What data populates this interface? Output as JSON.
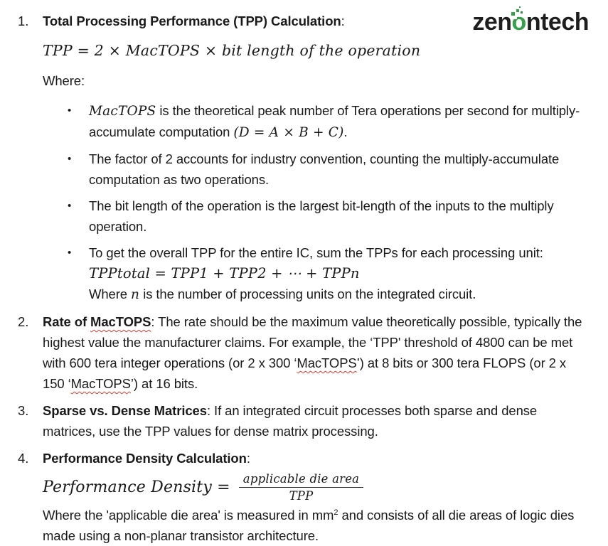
{
  "logo": {
    "part1": "zen",
    "part2": "o",
    "part3": "ntech",
    "green": "#34a04a",
    "text_color": "#1e1e1e"
  },
  "item1": {
    "number": "1.",
    "heading": "Total Processing Performance (TPP) Calculation",
    "colon": ":",
    "formula": "TPP = 2 × MacTOPS × bit length of the operation",
    "where_label": "Where:",
    "bullet_glyph": "•",
    "bullets": {
      "b1": {
        "math_lead": "MacTOPS",
        "text": " is the theoretical peak number of Tera operations per second for multiply-accumulate computation ",
        "math_tail": "(D = A × B + C)",
        "period": "."
      },
      "b2": {
        "text": "The factor of 2 accounts for industry convention, counting the multiply-accumulate computation as two operations."
      },
      "b3": {
        "text": "The bit length of the operation is the largest bit-length of the inputs to the multiply operation."
      },
      "b4": {
        "text": "To get the overall TPP for the entire IC, sum the TPPs for each processing unit:",
        "formula": "TPPtotal = TPP1 + TPP2 + ⋯ + TPPn",
        "where_pre": "Where ",
        "where_var": "n",
        "where_post": " is the number of processing units on the integrated circuit."
      }
    }
  },
  "item2": {
    "number": "2.",
    "heading_pre": "Rate of ",
    "heading_flagged": "MacTOPS",
    "colon": ":",
    "body_1": " The rate should be the maximum value theoretically possible, typically the highest value the manufacturer claims. For example, the ‘TPP' threshold of 4800 can be met with 600 tera integer operations (or 2 x 300 ‘",
    "flagged_1": "MacTOPS",
    "body_2": "’) at 8 bits or 300 tera FLOPS (or 2 x 150 ‘",
    "flagged_2": "MacTOPS",
    "body_3": "’) at 16 bits.",
    "squiggle_color": "#e03a2e"
  },
  "item3": {
    "number": "3.",
    "heading": "Sparse vs. Dense Matrices",
    "colon": ":",
    "body": " If an integrated circuit processes both sparse and dense matrices, use the TPP values for dense matrix processing."
  },
  "item4": {
    "number": "4.",
    "heading": "Performance Density Calculation",
    "colon": ":",
    "formula_lhs": "Performance Density =",
    "fraction": {
      "numerator": "applicable die area",
      "denominator": "TPP"
    },
    "body_1": "Where the 'applicable die area' is measured in mm",
    "superscript": "2",
    "body_2": " and consists of all die areas of logic dies made using a non-planar transistor architecture."
  }
}
